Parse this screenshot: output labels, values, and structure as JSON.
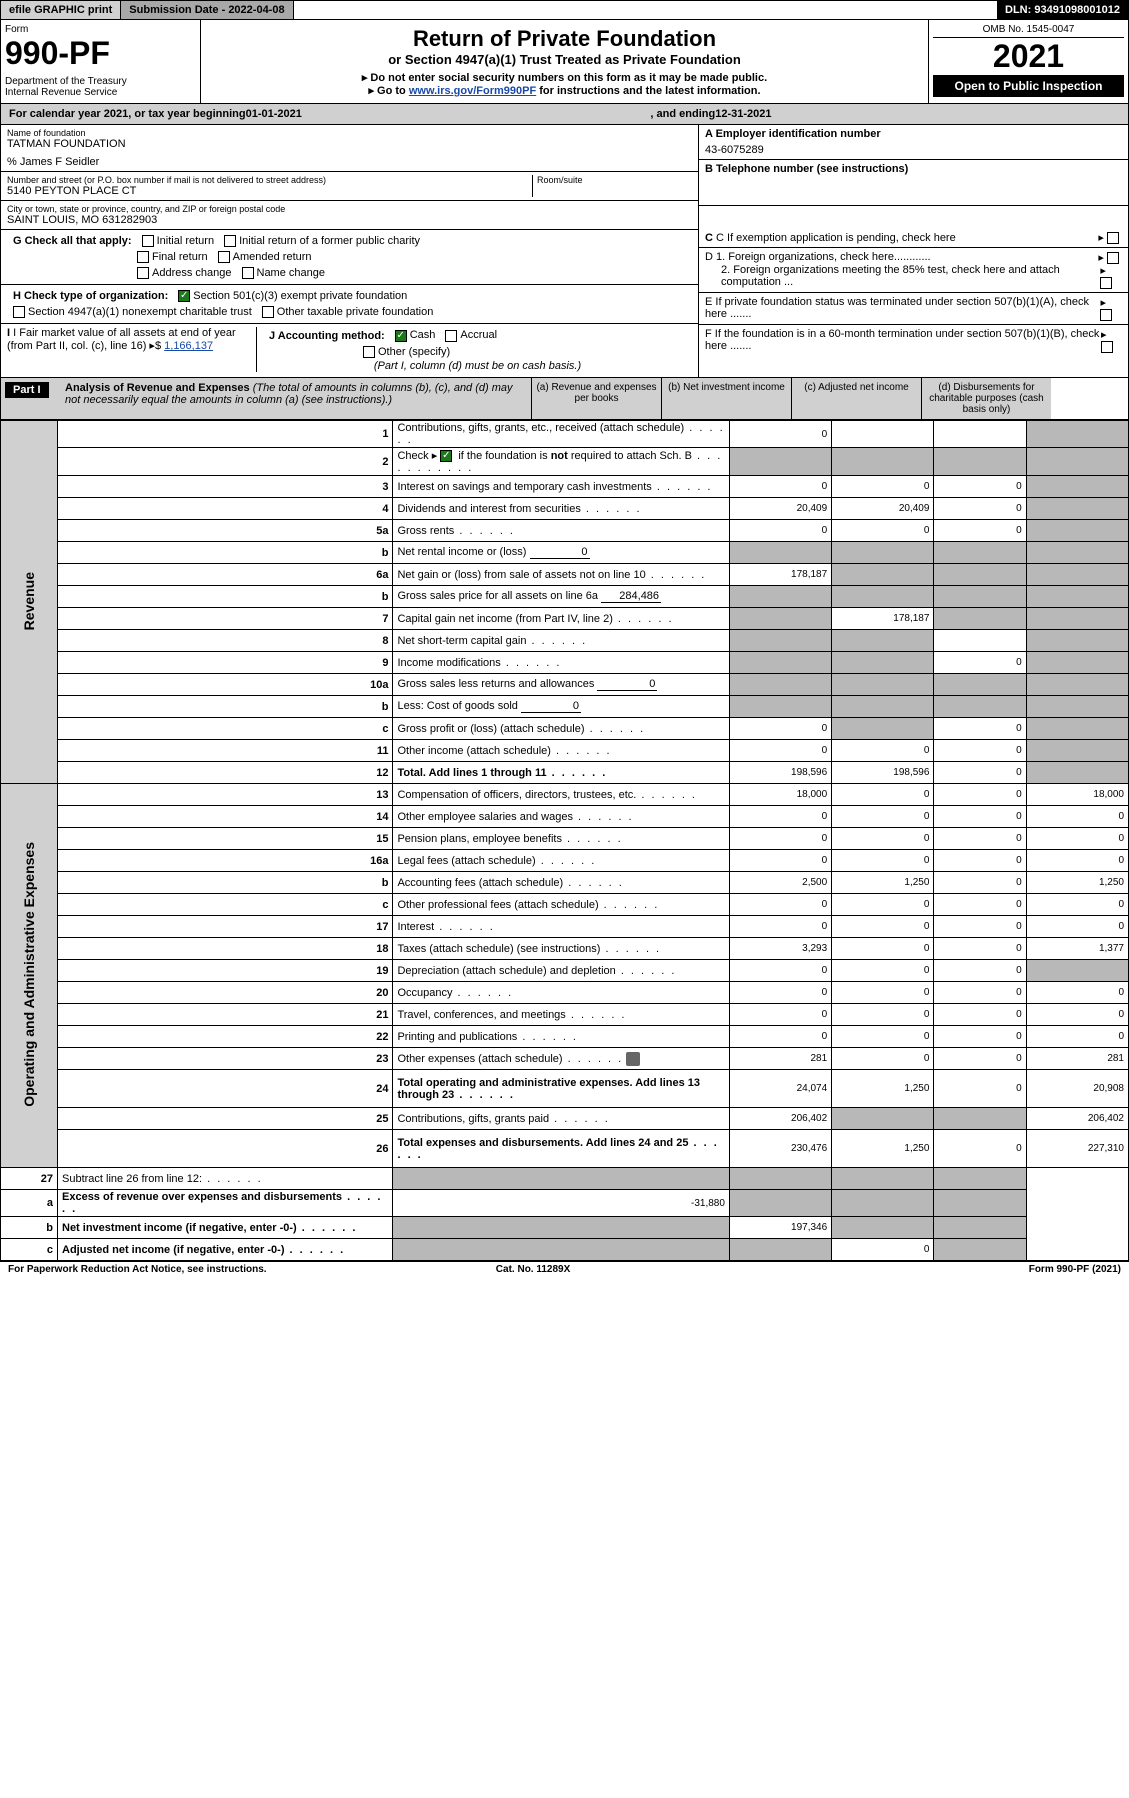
{
  "top": {
    "efile": "efile GRAPHIC print",
    "subdate_label": "Submission Date ",
    "subdate": "- 2022-04-08",
    "dln_label": "DLN: ",
    "dln": "93491098001012"
  },
  "header": {
    "form_label": "Form",
    "form_num": "990-PF",
    "dept": "Department of the Treasury\nInternal Revenue Service",
    "title1": "Return of Private Foundation",
    "title2": "or Section 4947(a)(1) Trust Treated as Private Foundation",
    "instr1": "▸ Do not enter social security numbers on this form as it may be made public.",
    "instr2_pre": "▸ Go to ",
    "instr2_link": "www.irs.gov/Form990PF",
    "instr2_post": " for instructions and the latest information.",
    "omb": "OMB No. 1545-0047",
    "year": "2021",
    "open_pub": "Open to Public Inspection"
  },
  "cal": {
    "pre": "For calendar year 2021, or tax year beginning ",
    "begin": "01-01-2021",
    "mid": " , and ending ",
    "end": "12-31-2021"
  },
  "info": {
    "name_label": "Name of foundation",
    "name": "TATMAN FOUNDATION",
    "care_of": "% James F Seidler",
    "addr_label": "Number and street (or P.O. box number if mail is not delivered to street address)",
    "addr": "5140 PEYTON PLACE CT",
    "room_label": "Room/suite",
    "city_label": "City or town, state or province, country, and ZIP or foreign postal code",
    "city": "SAINT LOUIS, MO  631282903",
    "a_label": "A Employer identification number",
    "a_val": "43-6075289",
    "b_label": "B Telephone number (see instructions)",
    "c_label": "C If exemption application is pending, check here",
    "d1": "D 1. Foreign organizations, check here............",
    "d2": "2. Foreign organizations meeting the 85% test, check here and attach computation ...",
    "e": "E  If private foundation status was terminated under section 507(b)(1)(A), check here .......",
    "f": "F  If the foundation is in a 60-month termination under section 507(b)(1)(B), check here .......",
    "g_label": "G Check all that apply:",
    "g_opts": [
      "Initial return",
      "Initial return of a former public charity",
      "Final return",
      "Amended return",
      "Address change",
      "Name change"
    ],
    "h_label": "H Check type of organization:",
    "h_opt1": "Section 501(c)(3) exempt private foundation",
    "h_opt2": "Section 4947(a)(1) nonexempt charitable trust",
    "h_opt3": "Other taxable private foundation",
    "i_label": "I Fair market value of all assets at end of year (from Part II, col. (c), line 16)",
    "i_val": "1,166,137",
    "j_label": "J Accounting method:",
    "j_cash": "Cash",
    "j_accrual": "Accrual",
    "j_other": "Other (specify)",
    "j_note": "(Part I, column (d) must be on cash basis.)"
  },
  "part1": {
    "label": "Part I",
    "title": "Analysis of Revenue and Expenses",
    "title_note": " (The total of amounts in columns (b), (c), and (d) may not necessarily equal the amounts in column (a) (see instructions).)",
    "cols": {
      "a": "(a)   Revenue and expenses per books",
      "b": "(b)   Net investment income",
      "c": "(c)   Adjusted net income",
      "d": "(d)   Disbursements for charitable purposes (cash basis only)"
    }
  },
  "sections": {
    "revenue": "Revenue",
    "expenses": "Operating and Administrative Expenses"
  },
  "rows": [
    {
      "n": "1",
      "d": "Contributions, gifts, grants, etc., received (attach schedule)",
      "a": "0",
      "b": "",
      "c": "",
      "dshade": true,
      "cshade": false
    },
    {
      "n": "2",
      "d": "Check ▸ ☑ if the foundation is not required to attach Sch. B",
      "a": "",
      "b": "",
      "c": "",
      "allshade": true,
      "descHasCheck": true
    },
    {
      "n": "3",
      "d": "Interest on savings and temporary cash investments",
      "a": "0",
      "b": "0",
      "c": "0",
      "dshade": true
    },
    {
      "n": "4",
      "d": "Dividends and interest from securities",
      "a": "20,409",
      "b": "20,409",
      "c": "0",
      "dshade": true
    },
    {
      "n": "5a",
      "d": "Gross rents",
      "a": "0",
      "b": "0",
      "c": "0",
      "dshade": true
    },
    {
      "n": "b",
      "d": "Net rental income or (loss)",
      "inlineVal": "0",
      "allshade": true
    },
    {
      "n": "6a",
      "d": "Net gain or (loss) from sale of assets not on line 10",
      "a": "178,187",
      "bshade": true,
      "cshade": true,
      "dshade": true
    },
    {
      "n": "b",
      "d": "Gross sales price for all assets on line 6a",
      "inlineVal": "284,486",
      "allshade": true
    },
    {
      "n": "7",
      "d": "Capital gain net income (from Part IV, line 2)",
      "ashade": true,
      "b": "178,187",
      "cshade": true,
      "dshade": true
    },
    {
      "n": "8",
      "d": "Net short-term capital gain",
      "ashade": true,
      "bshade": true,
      "c": "",
      "dshade": true
    },
    {
      "n": "9",
      "d": "Income modifications",
      "ashade": true,
      "bshade": true,
      "c": "0",
      "dshade": true
    },
    {
      "n": "10a",
      "d": "Gross sales less returns and allowances",
      "inlineVal": "0",
      "allshade": true
    },
    {
      "n": "b",
      "d": "Less: Cost of goods sold",
      "inlineVal": "0",
      "allshade": true
    },
    {
      "n": "c",
      "d": "Gross profit or (loss) (attach schedule)",
      "a": "0",
      "bshade": true,
      "c": "0",
      "dshade": true
    },
    {
      "n": "11",
      "d": "Other income (attach schedule)",
      "a": "0",
      "b": "0",
      "c": "0",
      "dshade": true
    },
    {
      "n": "12",
      "d": "Total. Add lines 1 through 11",
      "a": "198,596",
      "b": "198,596",
      "c": "0",
      "dshade": true,
      "bold": true
    }
  ],
  "exp_rows": [
    {
      "n": "13",
      "d": "Compensation of officers, directors, trustees, etc.",
      "a": "18,000",
      "b": "0",
      "c": "0",
      "dd": "18,000"
    },
    {
      "n": "14",
      "d": "Other employee salaries and wages",
      "a": "0",
      "b": "0",
      "c": "0",
      "dd": "0"
    },
    {
      "n": "15",
      "d": "Pension plans, employee benefits",
      "a": "0",
      "b": "0",
      "c": "0",
      "dd": "0"
    },
    {
      "n": "16a",
      "d": "Legal fees (attach schedule)",
      "a": "0",
      "b": "0",
      "c": "0",
      "dd": "0"
    },
    {
      "n": "b",
      "d": "Accounting fees (attach schedule)",
      "a": "2,500",
      "b": "1,250",
      "c": "0",
      "dd": "1,250"
    },
    {
      "n": "c",
      "d": "Other professional fees (attach schedule)",
      "a": "0",
      "b": "0",
      "c": "0",
      "dd": "0"
    },
    {
      "n": "17",
      "d": "Interest",
      "a": "0",
      "b": "0",
      "c": "0",
      "dd": "0"
    },
    {
      "n": "18",
      "d": "Taxes (attach schedule) (see instructions)",
      "a": "3,293",
      "b": "0",
      "c": "0",
      "dd": "1,377"
    },
    {
      "n": "19",
      "d": "Depreciation (attach schedule) and depletion",
      "a": "0",
      "b": "0",
      "c": "0",
      "dshade": true
    },
    {
      "n": "20",
      "d": "Occupancy",
      "a": "0",
      "b": "0",
      "c": "0",
      "dd": "0"
    },
    {
      "n": "21",
      "d": "Travel, conferences, and meetings",
      "a": "0",
      "b": "0",
      "c": "0",
      "dd": "0"
    },
    {
      "n": "22",
      "d": "Printing and publications",
      "a": "0",
      "b": "0",
      "c": "0",
      "dd": "0"
    },
    {
      "n": "23",
      "d": "Other expenses (attach schedule)",
      "a": "281",
      "b": "0",
      "c": "0",
      "dd": "281",
      "attach": true
    },
    {
      "n": "24",
      "d": "Total operating and administrative expenses. Add lines 13 through 23",
      "a": "24,074",
      "b": "1,250",
      "c": "0",
      "dd": "20,908",
      "bold": true,
      "tall": true
    },
    {
      "n": "25",
      "d": "Contributions, gifts, grants paid",
      "a": "206,402",
      "bshade": true,
      "cshade": true,
      "dd": "206,402"
    },
    {
      "n": "26",
      "d": "Total expenses and disbursements. Add lines 24 and 25",
      "a": "230,476",
      "b": "1,250",
      "c": "0",
      "dd": "227,310",
      "bold": true,
      "tall": true
    }
  ],
  "net_rows": [
    {
      "n": "27",
      "d": "Subtract line 26 from line 12:",
      "ashade": true,
      "bshade": true,
      "cshade": true,
      "dshade": true
    },
    {
      "n": "a",
      "d": "Excess of revenue over expenses and disbursements",
      "a": "-31,880",
      "bshade": true,
      "cshade": true,
      "dshade": true,
      "bold": true
    },
    {
      "n": "b",
      "d": "Net investment income (if negative, enter -0-)",
      "ashade": true,
      "b": "197,346",
      "cshade": true,
      "dshade": true,
      "bold": true
    },
    {
      "n": "c",
      "d": "Adjusted net income (if negative, enter -0-)",
      "ashade": true,
      "bshade": true,
      "c": "0",
      "dshade": true,
      "bold": true
    }
  ],
  "footer": {
    "left": "For Paperwork Reduction Act Notice, see instructions.",
    "mid": "Cat. No. 11289X",
    "right": "Form 990-PF (2021)"
  },
  "colors": {
    "shade": "#b8b8b8",
    "header_bg": "#d0d0d0",
    "link": "#1a4aa8",
    "check": "#1a7a1a"
  }
}
